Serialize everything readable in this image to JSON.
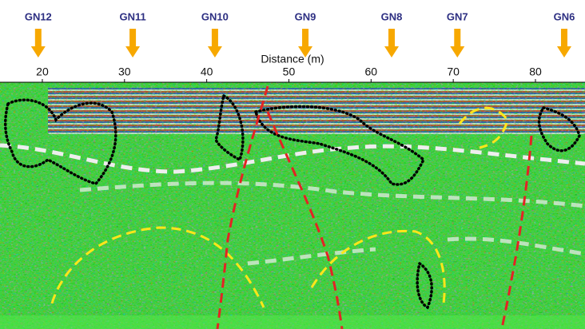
{
  "chart_data": {
    "type": "radargram",
    "xlabel": "Distance (m)",
    "xlim": [
      14.85,
      86.03
    ],
    "xticks": [
      20,
      30,
      40,
      50,
      60,
      70,
      80
    ],
    "markers": {
      "labels": [
        "GN12",
        "GN11",
        "GN10",
        "GN9",
        "GN8",
        "GN7",
        "GN6"
      ],
      "x": [
        19.5,
        31,
        41,
        52,
        62.5,
        70.5,
        83.5
      ],
      "color": "#f7a800"
    }
  }
}
